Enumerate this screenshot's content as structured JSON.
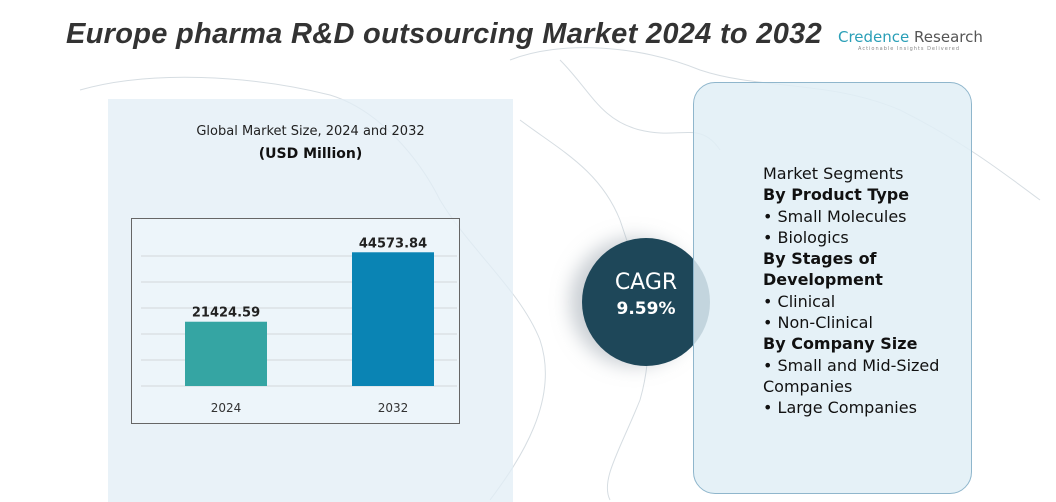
{
  "title": "Europe pharma R&D outsourcing Market 2024 to 2032",
  "logo": {
    "name_a": "Credence",
    "name_b": " Research",
    "tagline": "Actionable Insights Delivered"
  },
  "chart_data": {
    "type": "bar",
    "title": "Global Market Size, 2024 and 2032",
    "subtitle": "(USD Million)",
    "categories": [
      "2024",
      "2032"
    ],
    "values": [
      21424.59,
      44573.84
    ],
    "labels": [
      "21424.59",
      "44573.84"
    ],
    "colors": [
      "#35a5a3",
      "#0a84b4"
    ],
    "ylim": [
      0,
      50000
    ],
    "grid": true
  },
  "cagr": {
    "label": "CAGR",
    "value": "9.59%"
  },
  "segments": {
    "heading": "Market Segments",
    "groups": [
      {
        "title": "By Product Type",
        "items": [
          "Small Molecules",
          "Biologics"
        ]
      },
      {
        "title": "By Stages of Development",
        "items": [
          "Clinical",
          "Non-Clinical"
        ]
      },
      {
        "title": "By Company Size",
        "items": [
          "Small and Mid-Sized Companies",
          "Large Companies"
        ]
      }
    ]
  }
}
